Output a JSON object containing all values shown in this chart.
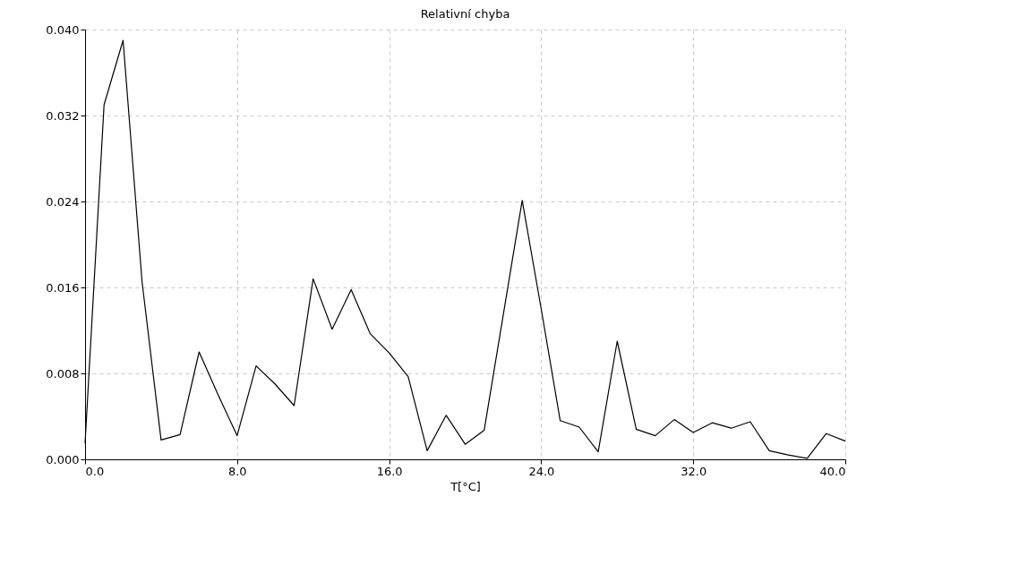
{
  "chart_data": {
    "type": "line",
    "title": "Relativní chyba",
    "xlabel": "T[°C]",
    "x": [
      0,
      1,
      2,
      3,
      4,
      5,
      6,
      7,
      8,
      9,
      10,
      11,
      12,
      13,
      14,
      15,
      16,
      17,
      18,
      19,
      20,
      21,
      22,
      23,
      24,
      25,
      26,
      27,
      28,
      29,
      30,
      31,
      32,
      33,
      34,
      35,
      36,
      37,
      38,
      39,
      40
    ],
    "series": [
      {
        "color": "#000000",
        "values": [
          0.0015,
          0.033,
          0.039,
          0.0165,
          0.0018,
          0.0023,
          0.01,
          0.006,
          0.0022,
          0.0087,
          0.007,
          0.005,
          0.0168,
          0.0121,
          0.0158,
          0.0117,
          0.0099,
          0.0077,
          0.0008,
          0.0041,
          0.0014,
          0.0027,
          0.0134,
          0.0241,
          0.014,
          0.0036,
          0.003,
          0.0007,
          0.011,
          0.0028,
          0.0022,
          0.0037,
          0.0025,
          0.0034,
          0.0029,
          0.0035,
          0.0008,
          0.0004,
          0.0001,
          0.0024,
          0.0017
        ]
      }
    ],
    "xlim": [
      0,
      40
    ],
    "ylim": [
      0,
      0.04
    ],
    "xticks": [
      {
        "value": 0,
        "label": "0.0"
      },
      {
        "value": 8,
        "label": "8.0"
      },
      {
        "value": 16,
        "label": "16.0"
      },
      {
        "value": 24,
        "label": "24.0"
      },
      {
        "value": 32,
        "label": "32.0"
      },
      {
        "value": 40,
        "label": "40.0"
      }
    ],
    "yticks": [
      {
        "value": 0,
        "label": "0.000"
      },
      {
        "value": 0.008,
        "label": "0.008"
      },
      {
        "value": 0.016,
        "label": "0.016"
      },
      {
        "value": 0.024,
        "label": "0.024"
      },
      {
        "value": 0.032,
        "label": "0.032"
      },
      {
        "value": 0.04,
        "label": "0.040"
      }
    ],
    "grid": true,
    "line_style": "solid",
    "legend": false
  }
}
